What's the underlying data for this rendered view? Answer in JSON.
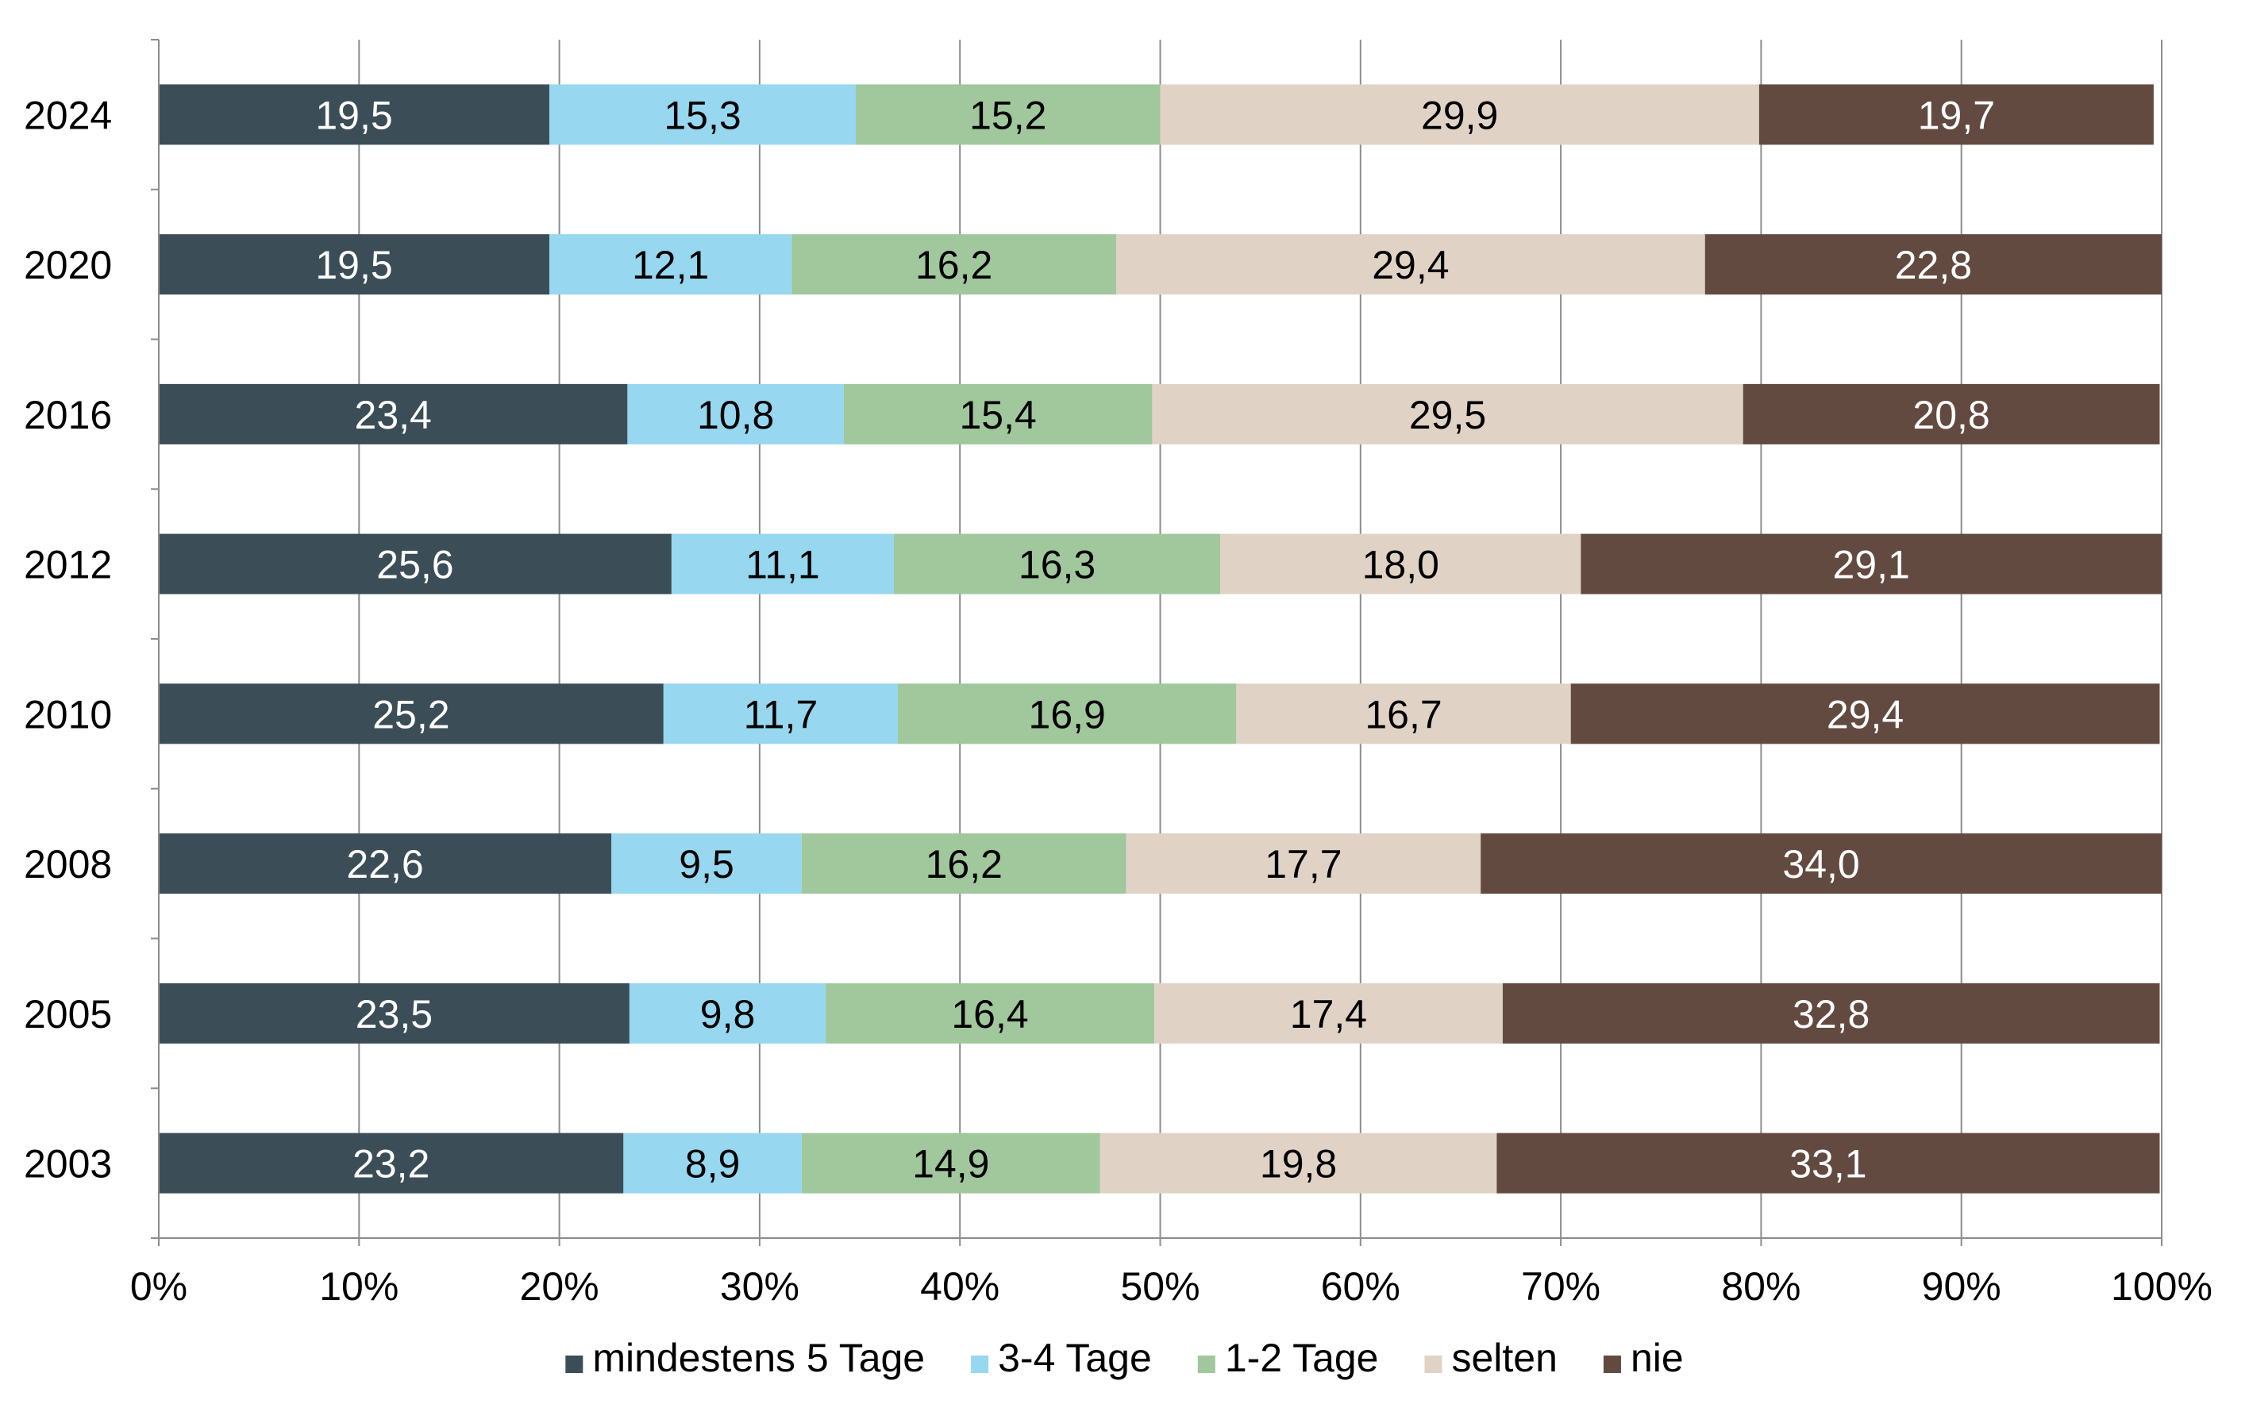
{
  "chart_data": {
    "type": "bar",
    "orientation": "horizontal",
    "stacked": true,
    "categories": [
      "2024",
      "2020",
      "2016",
      "2012",
      "2010",
      "2008",
      "2005",
      "2003"
    ],
    "series": [
      {
        "name": "mindestens 5 Tage",
        "color": "#3b4e58",
        "label_color": "#ffffff",
        "values": [
          19.5,
          19.5,
          23.4,
          25.6,
          25.2,
          22.6,
          23.5,
          23.2
        ],
        "labels": [
          "19,5",
          "19,5",
          "23,4",
          "25,6",
          "25,2",
          "22,6",
          "23,5",
          "23,2"
        ]
      },
      {
        "name": "3-4 Tage",
        "color": "#97d7ef",
        "label_color": "#000000",
        "values": [
          15.3,
          12.1,
          10.8,
          11.1,
          11.7,
          9.5,
          9.8,
          8.9
        ],
        "labels": [
          "15,3",
          "12,1",
          "10,8",
          "11,1",
          "11,7",
          "9,5",
          "9,8",
          "8,9"
        ]
      },
      {
        "name": "1-2 Tage",
        "color": "#a1c79d",
        "label_color": "#000000",
        "values": [
          15.2,
          16.2,
          15.4,
          16.3,
          16.9,
          16.2,
          16.4,
          14.9
        ],
        "labels": [
          "15,2",
          "16,2",
          "15,4",
          "16,3",
          "16,9",
          "16,2",
          "16,4",
          "14,9"
        ]
      },
      {
        "name": "selten",
        "color": "#e0d3c6",
        "label_color": "#000000",
        "values": [
          29.9,
          29.4,
          29.5,
          18.0,
          16.7,
          17.7,
          17.4,
          19.8
        ],
        "labels": [
          "29,9",
          "29,4",
          "29,5",
          "18,0",
          "16,7",
          "17,7",
          "17,4",
          "19,8"
        ]
      },
      {
        "name": "nie",
        "color": "#634a40",
        "label_color": "#ffffff",
        "values": [
          19.7,
          22.8,
          20.8,
          29.1,
          29.4,
          34.0,
          32.8,
          33.1
        ],
        "labels": [
          "19,7",
          "22,8",
          "20,8",
          "29,1",
          "29,4",
          "34,0",
          "32,8",
          "33,1"
        ]
      }
    ],
    "xaxis": {
      "ticks": [
        0,
        10,
        20,
        30,
        40,
        50,
        60,
        70,
        80,
        90,
        100
      ],
      "tick_labels": [
        "0%",
        "10%",
        "20%",
        "30%",
        "40%",
        "50%",
        "60%",
        "70%",
        "80%",
        "90%",
        "100%"
      ],
      "xlim": [
        0,
        100
      ]
    },
    "grid": "vertical",
    "legend": "bottom",
    "title": "",
    "xlabel": "",
    "ylabel": ""
  }
}
